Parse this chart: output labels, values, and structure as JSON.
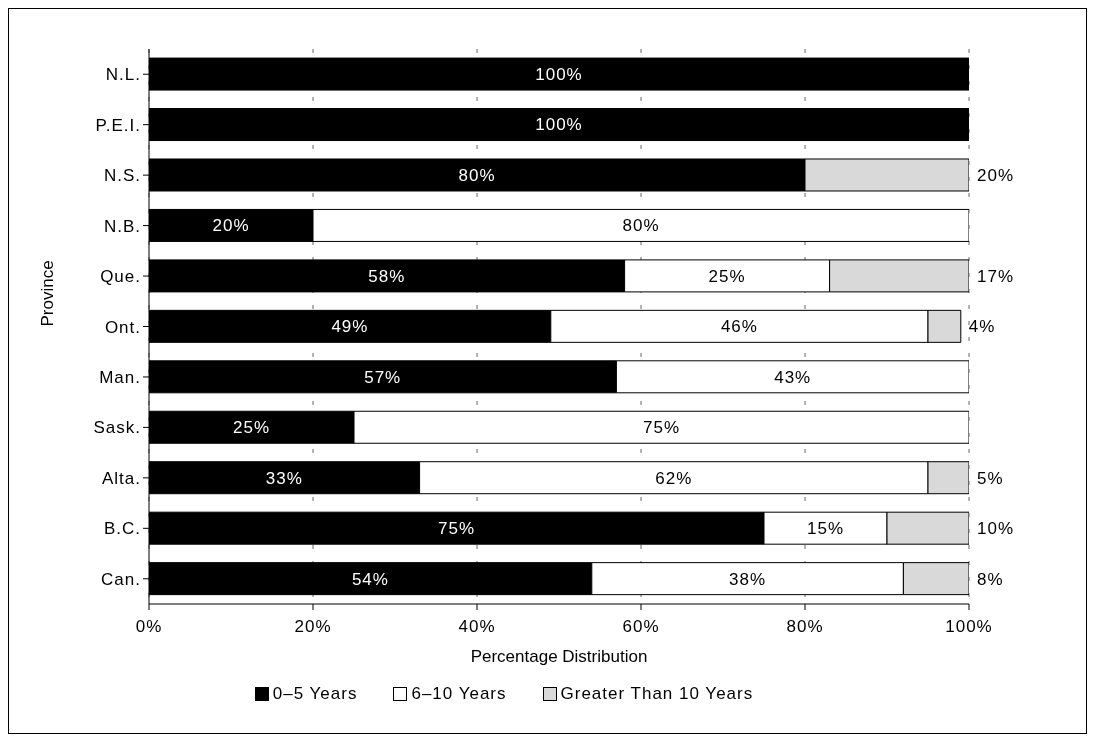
{
  "chart_data": {
    "type": "bar",
    "orientation": "horizontal",
    "stacked": true,
    "xlabel": "Percentage Distribution",
    "ylabel": "Province",
    "categories": [
      "N.L.",
      "P.E.I.",
      "N.S.",
      "N.B.",
      "Que.",
      "Ont.",
      "Man.",
      "Sask.",
      "Alta.",
      "B.C.",
      "Can."
    ],
    "series": [
      {
        "name": "0–5 Years",
        "color": "#000000",
        "values": [
          100,
          100,
          80,
          20,
          58,
          49,
          57,
          25,
          33,
          75,
          54
        ],
        "value_labels": [
          "100%",
          "100%",
          "80%",
          "20%",
          "58%",
          "49%",
          "57%",
          "25%",
          "33%",
          "75%",
          "54%"
        ]
      },
      {
        "name": "6–10 Years",
        "color": "#ffffff",
        "values": [
          0,
          0,
          0,
          80,
          25,
          46,
          43,
          75,
          62,
          15,
          38
        ],
        "value_labels": [
          null,
          null,
          null,
          "80%",
          "25%",
          "46%",
          "43%",
          "75%",
          "62%",
          "15%",
          "38%"
        ]
      },
      {
        "name": "Greater Than 10 Years",
        "color": "#d9d9d9",
        "values": [
          0,
          0,
          20,
          0,
          17,
          4,
          0,
          0,
          5,
          10,
          8
        ],
        "value_labels": [
          null,
          null,
          "20%",
          null,
          "17%",
          "4%",
          null,
          null,
          "5%",
          "10%",
          "8%"
        ]
      }
    ],
    "xlim": [
      0,
      100
    ],
    "xticks": [
      {
        "value": 0,
        "label": "0%"
      },
      {
        "value": 20,
        "label": "20%"
      },
      {
        "value": 40,
        "label": "40%"
      },
      {
        "value": 60,
        "label": "60%"
      },
      {
        "value": 80,
        "label": "80%"
      },
      {
        "value": 100,
        "label": "100%"
      }
    ],
    "grid": "x",
    "legend": "bottom"
  }
}
